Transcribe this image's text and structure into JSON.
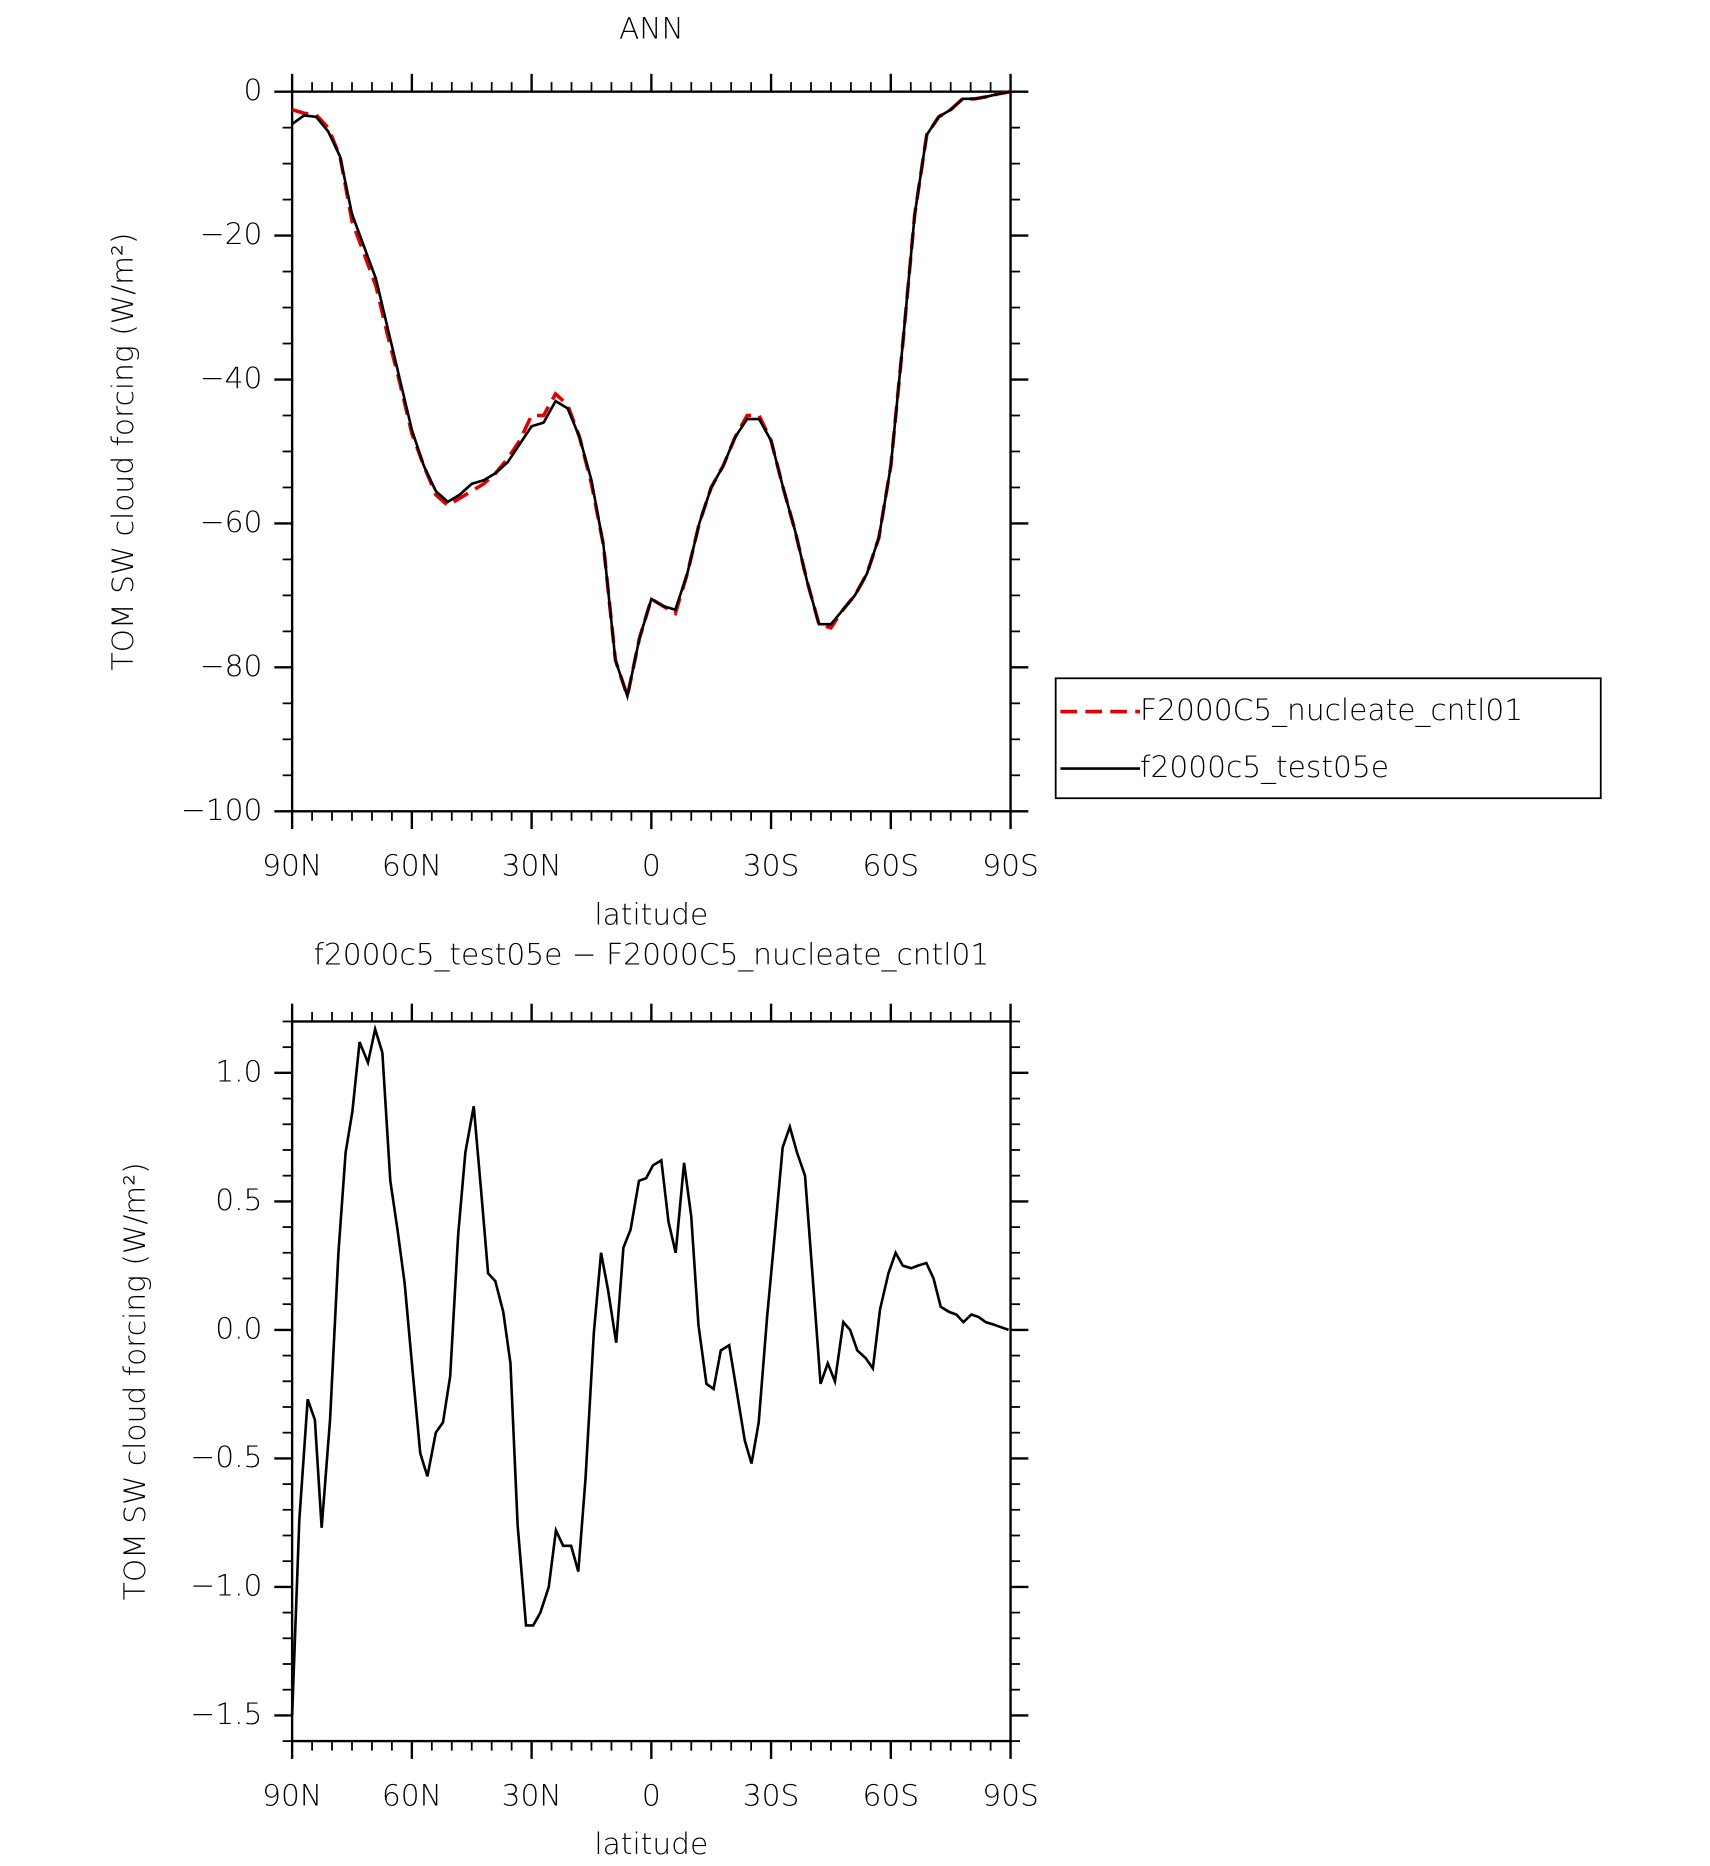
{
  "chart_data": [
    {
      "type": "line",
      "title": "ANN",
      "xlabel": "latitude",
      "ylabel": "TOM SW cloud forcing (W/m²)",
      "x": [
        90,
        87,
        84,
        81,
        78,
        75,
        72,
        69,
        66,
        63,
        60,
        57,
        54,
        51,
        48,
        45,
        42,
        39,
        36,
        33,
        30,
        27,
        24,
        21,
        18,
        15,
        12,
        9,
        6,
        3,
        0,
        -3,
        -6,
        -9,
        -12,
        -15,
        -18,
        -21,
        -24,
        -27,
        -30,
        -33,
        -36,
        -39,
        -42,
        -45,
        -48,
        -51,
        -54,
        -57,
        -60,
        -63,
        -66,
        -69,
        -72,
        -75,
        -78,
        -81,
        -84,
        -87,
        -90
      ],
      "series": [
        {
          "name": "F2000C5_nucleate_cntl01",
          "color": "#e00000",
          "dash": true,
          "values": [
            -2.5,
            -3,
            -3.2,
            -5,
            -9,
            -18,
            -22.5,
            -27,
            -34,
            -40.5,
            -47.5,
            -52,
            -56,
            -57.5,
            -56.5,
            -55.5,
            -54.5,
            -53,
            -51,
            -48.5,
            -45,
            -45,
            -42,
            -43.5,
            -48,
            -54.5,
            -63,
            -79,
            -84,
            -76,
            -70.5,
            -71.5,
            -72.5,
            -67,
            -60,
            -55,
            -52,
            -48,
            -45,
            -45,
            -48.5,
            -55,
            -61,
            -68,
            -74,
            -74.5,
            -72,
            -70,
            -67,
            -62,
            -52,
            -35,
            -17,
            -6,
            -3.5,
            -2.5,
            -1,
            -1,
            -0.7,
            -0.3,
            0
          ]
        },
        {
          "name": "f2000c5_test05e",
          "color": "#000000",
          "dash": false,
          "values": [
            -4.5,
            -3.3,
            -3.5,
            -5.5,
            -9,
            -17,
            -21.5,
            -26,
            -33,
            -40,
            -47,
            -52,
            -55.5,
            -57,
            -56,
            -54.5,
            -54,
            -53,
            -51.5,
            -49,
            -46.5,
            -46,
            -43,
            -44,
            -48,
            -54,
            -63,
            -79,
            -84,
            -76,
            -70.5,
            -71.5,
            -72,
            -67,
            -60,
            -55,
            -52,
            -48,
            -45.5,
            -45.5,
            -48.5,
            -55,
            -61,
            -68,
            -74,
            -74,
            -72,
            -70,
            -67,
            -62,
            -52,
            -35,
            -17,
            -6,
            -3.5,
            -2.5,
            -1,
            -1,
            -0.7,
            -0.3,
            0
          ]
        }
      ],
      "xlim": [
        90,
        -90
      ],
      "xticks": [
        {
          "value": 90,
          "label": "90N"
        },
        {
          "value": 60,
          "label": "60N"
        },
        {
          "value": 30,
          "label": "30N"
        },
        0,
        {
          "value": -30,
          "label": "30S"
        },
        {
          "value": -60,
          "label": "60S"
        },
        {
          "value": -90,
          "label": "90S"
        }
      ],
      "ylim": [
        -100,
        0
      ],
      "yticks": [
        0,
        {
          "value": -20,
          "label": "−20"
        },
        {
          "value": -40,
          "label": "−40"
        },
        {
          "value": -60,
          "label": "−60"
        },
        {
          "value": -80,
          "label": "−80"
        },
        {
          "value": -100,
          "label": "−100"
        }
      ],
      "minor_xstep": 5,
      "minor_ystep": 5,
      "legend": "outside right"
    },
    {
      "type": "line",
      "title": "f2000c5_test05e − F2000C5_nucleate_cntl01",
      "xlabel": "latitude",
      "ylabel": "TOM SW cloud forcing (W/m²)",
      "x": [
        90,
        88.2,
        86.1,
        84.3,
        82.6,
        80.5,
        78.4,
        76.6,
        74.9,
        73.1,
        71.0,
        69.2,
        67.4,
        65.4,
        63.6,
        61.8,
        59.7,
        57.9,
        56.1,
        54.0,
        52.2,
        50.4,
        48.4,
        46.6,
        44.5,
        42.7,
        40.9,
        39.1,
        37.1,
        35.3,
        33.5,
        31.4,
        29.6,
        27.8,
        25.7,
        23.9,
        22.1,
        20.1,
        18.3,
        16.5,
        14.4,
        12.6,
        10.9,
        8.8,
        7.0,
        5.2,
        3.1,
        1.3,
        -0.4,
        -2.5,
        -4.3,
        -6.1,
        -8.2,
        -10.0,
        -11.8,
        -13.8,
        -15.6,
        -17.4,
        -19.5,
        -21.3,
        -23.4,
        -25.1,
        -26.9,
        -29.0,
        -30.8,
        -32.9,
        -34.7,
        -36.5,
        -38.5,
        -40.3,
        -42.4,
        -44.2,
        -46.0,
        -48.1,
        -49.8,
        -51.6,
        -53.7,
        -55.5,
        -57.3,
        -59.4,
        -61.2,
        -63.0,
        -65.1,
        -66.8,
        -68.9,
        -70.7,
        -72.5,
        -74.6,
        -76.4,
        -78.2,
        -80.2,
        -82.0,
        -83.8,
        -85.9,
        -87.7,
        -89.5
      ],
      "series": [
        {
          "color": "#000000",
          "dash": false,
          "values": [
            -1.5,
            -0.74,
            -0.27,
            -0.35,
            -0.77,
            -0.35,
            0.3,
            0.69,
            0.85,
            1.12,
            1.04,
            1.17,
            1.08,
            0.58,
            0.39,
            0.18,
            -0.18,
            -0.48,
            -0.57,
            -0.4,
            -0.36,
            -0.18,
            0.37,
            0.69,
            0.87,
            0.55,
            0.22,
            0.19,
            0.07,
            -0.13,
            -0.76,
            -1.15,
            -1.15,
            -1.1,
            -1.0,
            -0.78,
            -0.84,
            -0.84,
            -0.94,
            -0.58,
            -0.01,
            0.3,
            0.16,
            -0.05,
            0.32,
            0.39,
            0.58,
            0.59,
            0.64,
            0.66,
            0.42,
            0.3,
            0.65,
            0.44,
            0.02,
            -0.21,
            -0.23,
            -0.08,
            -0.06,
            -0.23,
            -0.43,
            -0.52,
            -0.36,
            0.05,
            0.35,
            0.71,
            0.79,
            0.69,
            0.6,
            0.23,
            -0.21,
            -0.13,
            -0.2,
            0.03,
            0.0,
            -0.08,
            -0.11,
            -0.15,
            0.08,
            0.22,
            0.3,
            0.25,
            0.24,
            0.25,
            0.26,
            0.2,
            0.09,
            0.07,
            0.06,
            0.03,
            0.06,
            0.05,
            0.03,
            0.02,
            0.01,
            0.0
          ]
        }
      ],
      "xlim": [
        90,
        -90
      ],
      "xticks": [
        {
          "value": 90,
          "label": "90N"
        },
        {
          "value": 60,
          "label": "60N"
        },
        {
          "value": 30,
          "label": "30N"
        },
        0,
        {
          "value": -30,
          "label": "30S"
        },
        {
          "value": -60,
          "label": "60S"
        },
        {
          "value": -90,
          "label": "90S"
        }
      ],
      "ylim": [
        -1.6,
        1.2
      ],
      "yticks": [
        {
          "value": 1,
          "label": "1.0"
        },
        0.5,
        {
          "value": 0,
          "label": "0.0"
        },
        {
          "value": -0.5,
          "label": "−0.5"
        },
        {
          "value": -1,
          "label": "−1.0"
        },
        {
          "value": -1.5,
          "label": "−1.5"
        }
      ],
      "minor_xstep": 5,
      "minor_ystep": 0.1
    }
  ]
}
